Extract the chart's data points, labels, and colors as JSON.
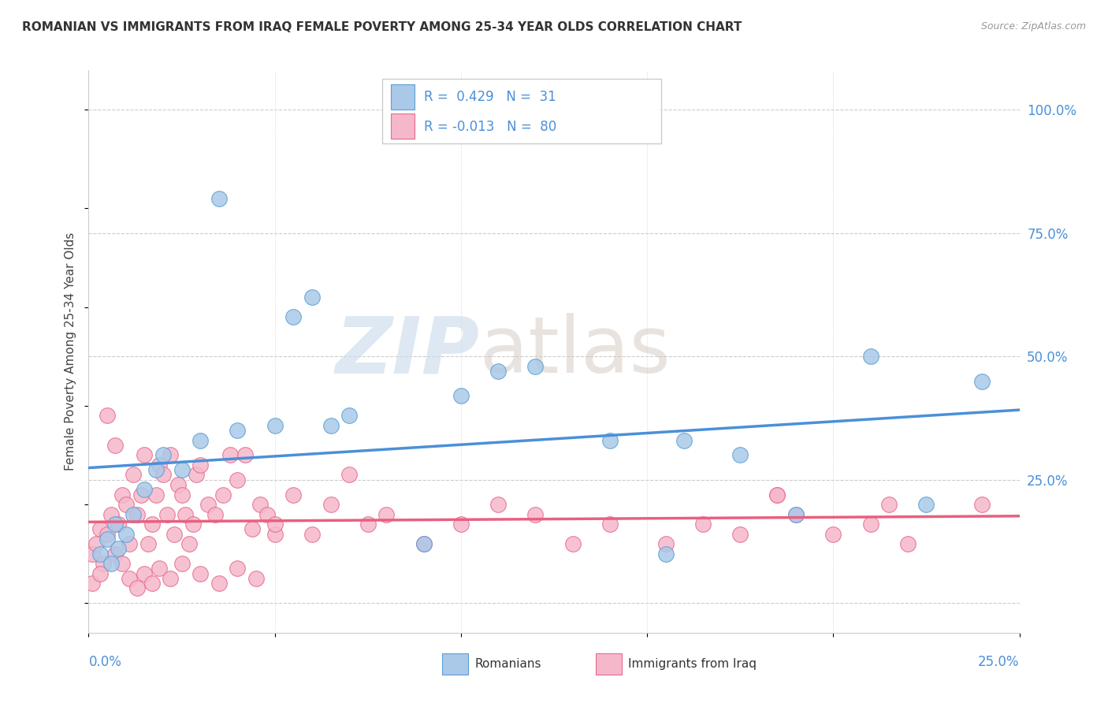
{
  "title": "ROMANIAN VS IMMIGRANTS FROM IRAQ FEMALE POVERTY AMONG 25-34 YEAR OLDS CORRELATION CHART",
  "source": "Source: ZipAtlas.com",
  "ylabel": "Female Poverty Among 25-34 Year Olds",
  "ylabel_right_ticks": [
    "100.0%",
    "75.0%",
    "50.0%",
    "25.0%"
  ],
  "ylabel_right_values": [
    1.0,
    0.75,
    0.5,
    0.25
  ],
  "watermark_zip": "ZIP",
  "watermark_atlas": "atlas",
  "romanian_color": "#aac9e8",
  "iraq_color": "#f5b8cb",
  "romanian_edge_color": "#5a9fd4",
  "iraq_edge_color": "#e8698a",
  "romanian_line_color": "#4a90d9",
  "iraq_line_color": "#e86080",
  "r_romanian": 0.429,
  "r_iraq": -0.013,
  "n_romanian": 31,
  "n_iraq": 80,
  "xlim": [
    0.0,
    0.25
  ],
  "ylim": [
    -0.06,
    1.08
  ],
  "yaxis_grid_values": [
    0.0,
    0.25,
    0.5,
    0.75,
    1.0
  ],
  "romanian_scatter_x": [
    0.003,
    0.005,
    0.006,
    0.007,
    0.008,
    0.01,
    0.012,
    0.015,
    0.018,
    0.02,
    0.025,
    0.03,
    0.035,
    0.04,
    0.05,
    0.055,
    0.06,
    0.065,
    0.07,
    0.09,
    0.1,
    0.11,
    0.12,
    0.14,
    0.155,
    0.16,
    0.175,
    0.19,
    0.21,
    0.225,
    0.24
  ],
  "romanian_scatter_y": [
    0.1,
    0.13,
    0.08,
    0.16,
    0.11,
    0.14,
    0.18,
    0.23,
    0.27,
    0.3,
    0.27,
    0.33,
    0.82,
    0.35,
    0.36,
    0.58,
    0.62,
    0.36,
    0.38,
    0.12,
    0.42,
    0.47,
    0.48,
    0.33,
    0.1,
    0.33,
    0.3,
    0.18,
    0.5,
    0.2,
    0.45
  ],
  "iraq_scatter_x": [
    0.001,
    0.002,
    0.003,
    0.004,
    0.005,
    0.006,
    0.007,
    0.008,
    0.009,
    0.01,
    0.011,
    0.012,
    0.013,
    0.014,
    0.015,
    0.016,
    0.017,
    0.018,
    0.019,
    0.02,
    0.021,
    0.022,
    0.023,
    0.024,
    0.025,
    0.026,
    0.027,
    0.028,
    0.029,
    0.03,
    0.032,
    0.034,
    0.036,
    0.038,
    0.04,
    0.042,
    0.044,
    0.046,
    0.048,
    0.05,
    0.055,
    0.06,
    0.065,
    0.07,
    0.075,
    0.08,
    0.09,
    0.1,
    0.11,
    0.12,
    0.13,
    0.14,
    0.155,
    0.165,
    0.175,
    0.185,
    0.19,
    0.2,
    0.21,
    0.22,
    0.24,
    0.001,
    0.003,
    0.005,
    0.007,
    0.009,
    0.011,
    0.013,
    0.015,
    0.017,
    0.019,
    0.022,
    0.025,
    0.03,
    0.035,
    0.04,
    0.045,
    0.05,
    0.185,
    0.215
  ],
  "iraq_scatter_y": [
    0.1,
    0.12,
    0.15,
    0.08,
    0.14,
    0.18,
    0.1,
    0.16,
    0.22,
    0.2,
    0.12,
    0.26,
    0.18,
    0.22,
    0.3,
    0.12,
    0.16,
    0.22,
    0.28,
    0.26,
    0.18,
    0.3,
    0.14,
    0.24,
    0.22,
    0.18,
    0.12,
    0.16,
    0.26,
    0.28,
    0.2,
    0.18,
    0.22,
    0.3,
    0.25,
    0.3,
    0.15,
    0.2,
    0.18,
    0.14,
    0.22,
    0.14,
    0.2,
    0.26,
    0.16,
    0.18,
    0.12,
    0.16,
    0.2,
    0.18,
    0.12,
    0.16,
    0.12,
    0.16,
    0.14,
    0.22,
    0.18,
    0.14,
    0.16,
    0.12,
    0.2,
    0.04,
    0.06,
    0.38,
    0.32,
    0.08,
    0.05,
    0.03,
    0.06,
    0.04,
    0.07,
    0.05,
    0.08,
    0.06,
    0.04,
    0.07,
    0.05,
    0.16,
    0.22,
    0.2
  ]
}
